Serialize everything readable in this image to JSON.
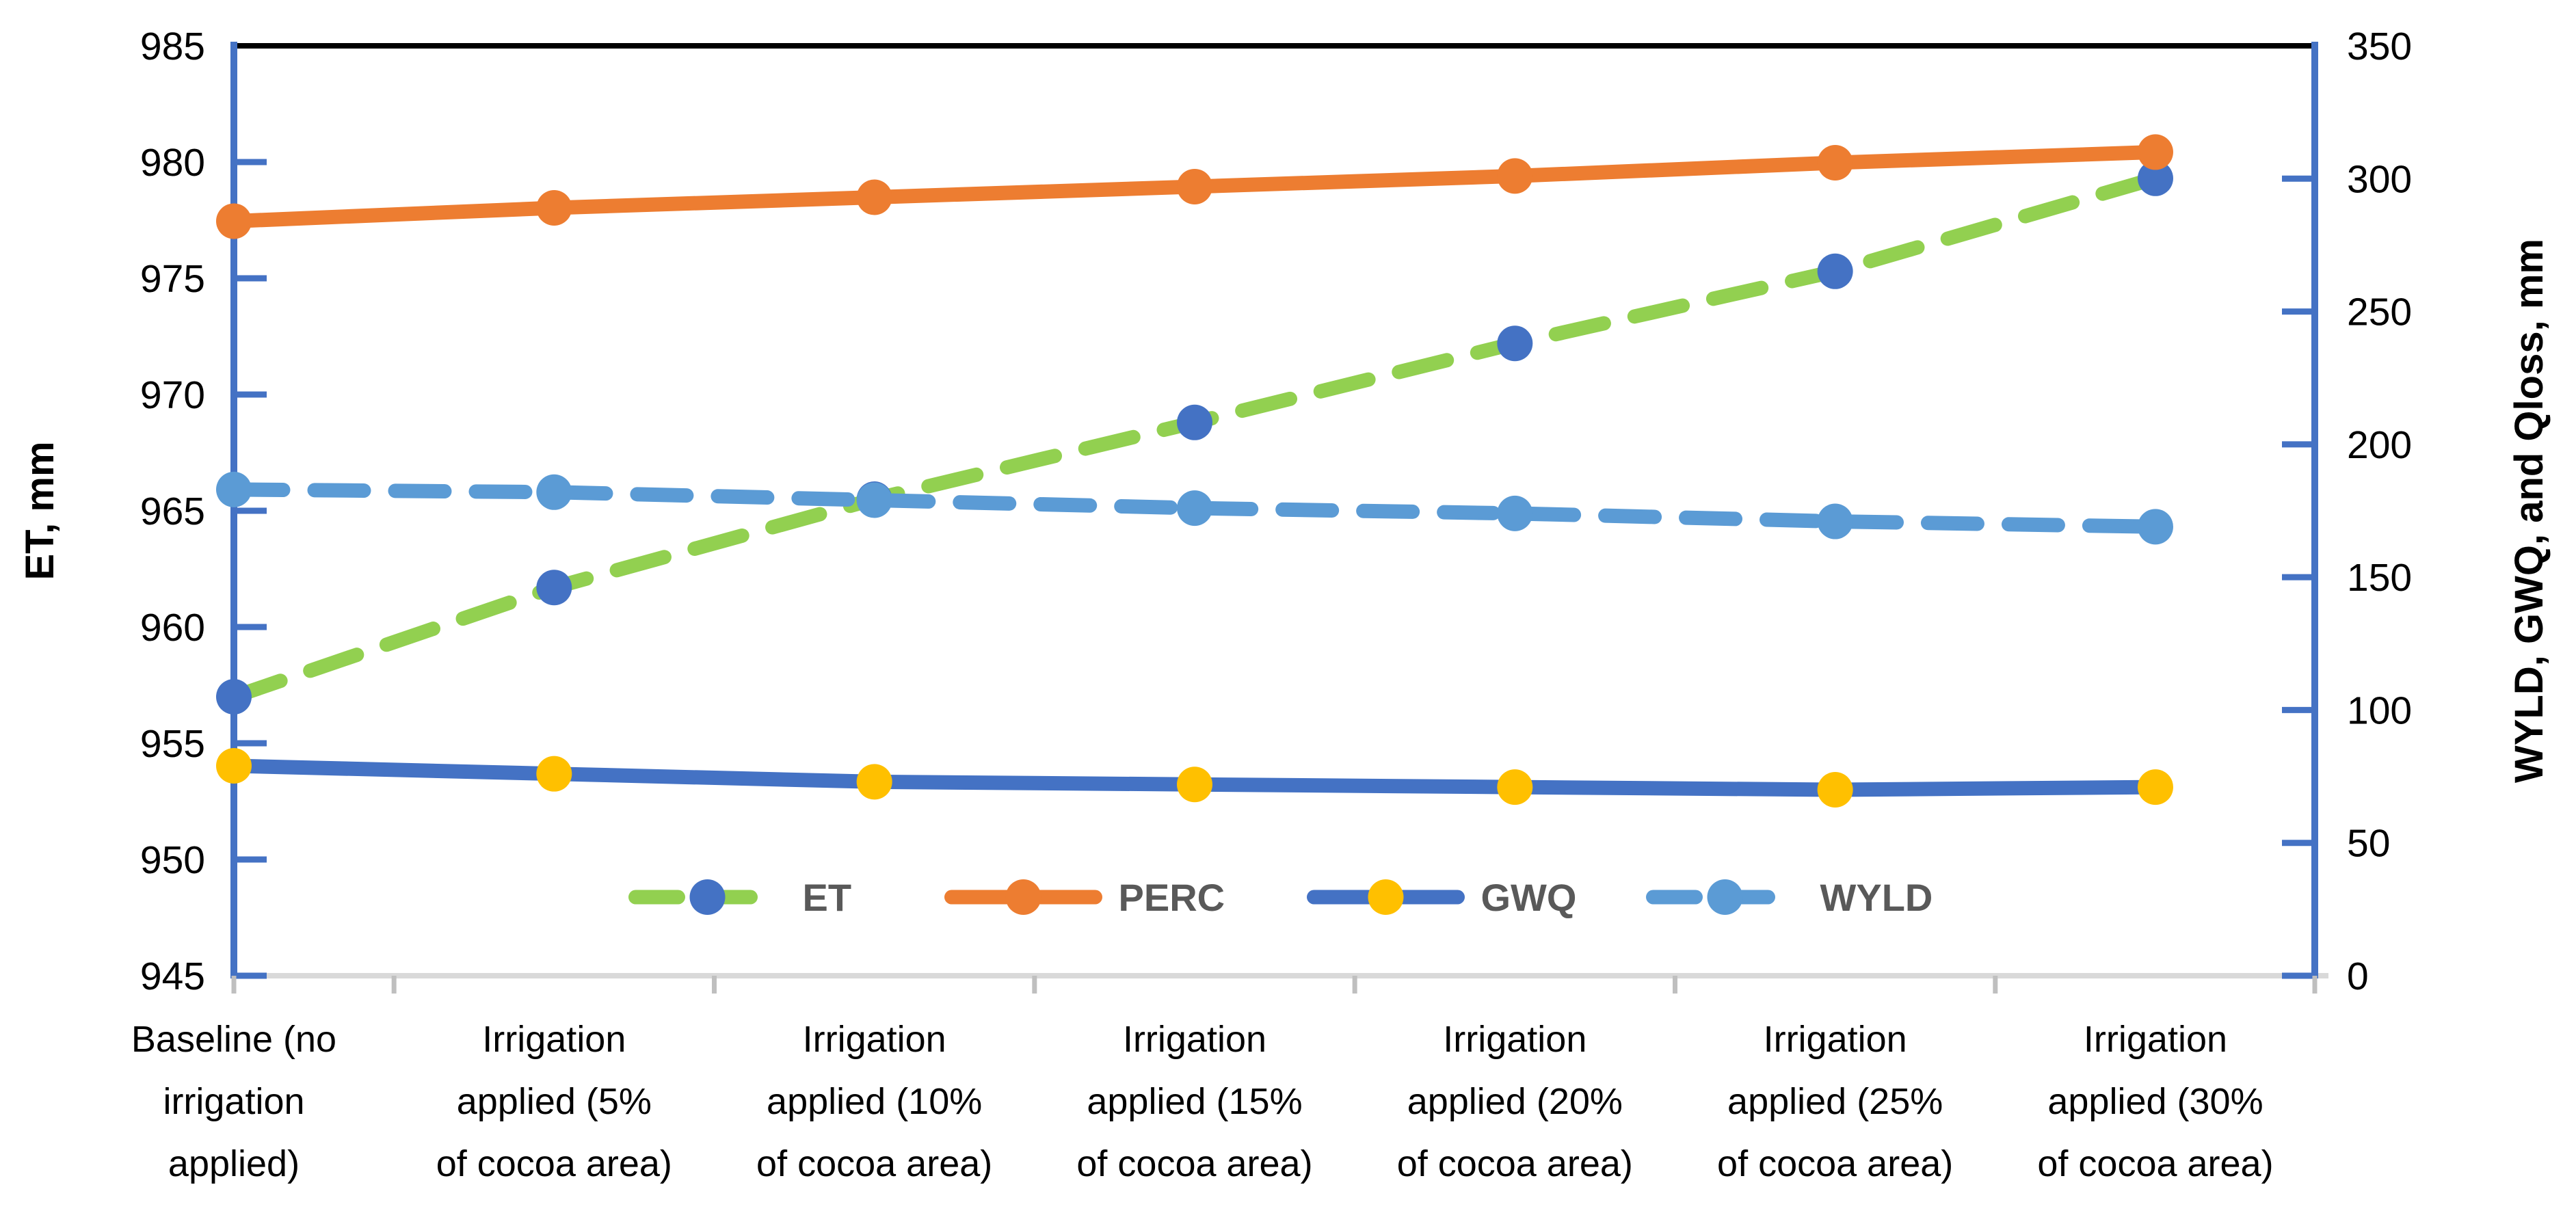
{
  "page": {
    "background": "#FFFFFF"
  },
  "chart_data": {
    "type": "line",
    "title": "",
    "categories": [
      "Baseline (no irrigation applied)",
      "Irrigation applied (5% of cocoa area)",
      "Irrigation applied (10% of cocoa area)",
      "Irrigation applied (15% of cocoa area)",
      "Irrigation applied (20% of cocoa area)",
      "Irrigation applied (25% of cocoa area)",
      "Irrigation applied (30% of cocoa area)"
    ],
    "categories_wrapped": [
      [
        "Baseline (no",
        "irrigation",
        "applied)"
      ],
      [
        "Irrigation",
        "applied (5%",
        "of cocoa area)"
      ],
      [
        "Irrigation",
        "applied (10%",
        "of cocoa area)"
      ],
      [
        "Irrigation",
        "applied (15%",
        "of cocoa area)"
      ],
      [
        "Irrigation",
        "applied (20%",
        "of cocoa area)"
      ],
      [
        "Irrigation",
        "applied (25%",
        "of cocoa area)"
      ],
      [
        "Irrigation",
        "applied (30%",
        "of cocoa area)"
      ]
    ],
    "left_axis": {
      "label": "ET, mm",
      "min": 945,
      "max": 985,
      "step": 5,
      "ticks": [
        985,
        980,
        975,
        970,
        965,
        960,
        955,
        950,
        945
      ]
    },
    "right_axis": {
      "label": "WYLD, GWQ, and Qloss, mm",
      "min": 0,
      "max": 350,
      "step": 50,
      "ticks": [
        350,
        300,
        250,
        200,
        150,
        100,
        50,
        0
      ]
    },
    "grid": "off",
    "legend_position": "bottom-center-inside",
    "series": [
      {
        "name": "ET",
        "axis": "left",
        "dashed": true,
        "line_color": "#92D050",
        "marker_color": "#4472C4",
        "values": [
          957.0,
          961.7,
          965.5,
          968.8,
          972.2,
          975.3,
          979.3
        ]
      },
      {
        "name": "PERC",
        "axis": "right",
        "dashed": false,
        "line_color": "#ED7D31",
        "marker_color": "#ED7D31",
        "values": [
          284,
          289,
          293,
          297,
          301,
          306,
          310
        ]
      },
      {
        "name": "GWQ",
        "axis": "right",
        "dashed": false,
        "line_color": "#4472C4",
        "marker_color": "#FFC000",
        "values": [
          79,
          76,
          73,
          72,
          71,
          70,
          71
        ]
      },
      {
        "name": "WYLD",
        "axis": "right",
        "dashed": true,
        "line_color": "#5B9BD5",
        "marker_color": "#5B9BD5",
        "values": [
          183,
          182,
          179,
          176,
          174,
          171,
          169
        ]
      }
    ],
    "colors": {
      "axis_line": "#4472C4",
      "top_border": "#000000",
      "bottom_border": "#D9D9D9",
      "bottom_tick": "#BFBFBF",
      "tick_text": "#000000",
      "legend_text": "#595959"
    }
  }
}
